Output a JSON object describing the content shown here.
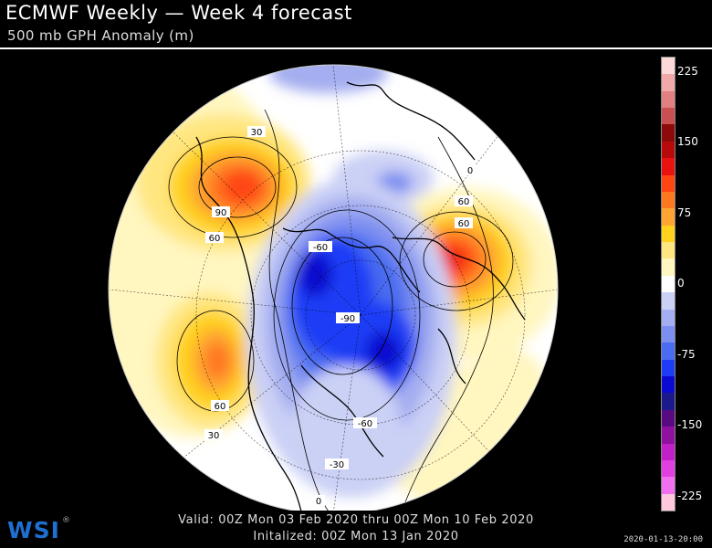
{
  "header": {
    "title": "ECMWF Weekly — Week 4 forecast",
    "subtitle": "500 mb GPH Anomaly (m)"
  },
  "footer": {
    "valid": "Valid: 00Z Mon 03 Feb 2020 thru 00Z Mon 10 Feb 2020",
    "initialized": "Initalized: 00Z Mon 13 Jan 2020",
    "logo": "WSI",
    "registered": "®",
    "timestamp": "2020-01-13-20:00"
  },
  "colorbar": {
    "min": -240,
    "max": 240,
    "colors": [
      "#ffc8dc",
      "#f070f0",
      "#e040e0",
      "#c020c8",
      "#9010a0",
      "#5a0a80",
      "#1a1a8c",
      "#0a0ad0",
      "#1e3cf5",
      "#4a6cf0",
      "#7c8ef0",
      "#a4aef0",
      "#cbd0f5",
      "#ffffff",
      "#fff6c0",
      "#ffe680",
      "#ffd21e",
      "#ffa532",
      "#ff7820",
      "#ff4612",
      "#e81210",
      "#b80a0a",
      "#8c0a0a",
      "#c85050",
      "#e08080",
      "#f0a8a8",
      "#fcd8d8"
    ],
    "labels": [
      {
        "value": 225,
        "text": "225"
      },
      {
        "value": 150,
        "text": "150"
      },
      {
        "value": 75,
        "text": "75"
      },
      {
        "value": 0,
        "text": "0"
      },
      {
        "value": -75,
        "text": "-75"
      },
      {
        "value": -150,
        "text": "-150"
      },
      {
        "value": -225,
        "text": "-225"
      }
    ]
  },
  "contour_labels": [
    "30",
    "90",
    "60",
    "-60",
    "60",
    "60",
    "-90",
    "60",
    "30",
    "-60",
    "-30",
    "0",
    "0"
  ]
}
